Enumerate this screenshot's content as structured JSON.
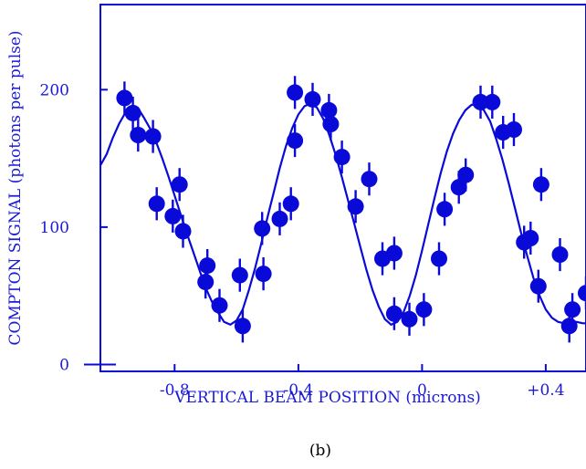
{
  "colors": {
    "series": "#0a0ad8",
    "label": "#1a1ad8",
    "caption": "#000000"
  },
  "caption": "(b)",
  "chart_data": {
    "type": "scatter",
    "title": "",
    "xlabel": "VERTICAL BEAM POSITION (microns)",
    "ylabel": "COMPTON SIGNAL (photons per pulse)",
    "xlim": [
      -1.04,
      0.53
    ],
    "ylim": [
      -5,
      262
    ],
    "xticks": [
      -0.8,
      -0.4,
      0,
      0.4
    ],
    "xtick_labels": [
      "-0.8",
      "-0.4",
      "0",
      "+0.4"
    ],
    "yticks": [
      0,
      100,
      200
    ],
    "ytick_labels": [
      "0",
      "100",
      "200"
    ],
    "grid": false,
    "legend": "none",
    "series": [
      {
        "type": "scatter",
        "error_bars": true,
        "points": [
          {
            "x": -0.962,
            "y": 194,
            "err": 12
          },
          {
            "x": -0.935,
            "y": 183,
            "err": 12
          },
          {
            "x": -0.918,
            "y": 167,
            "err": 12
          },
          {
            "x": -0.87,
            "y": 166,
            "err": 12
          },
          {
            "x": -0.858,
            "y": 117,
            "err": 12
          },
          {
            "x": -0.806,
            "y": 108,
            "err": 12
          },
          {
            "x": -0.784,
            "y": 131,
            "err": 12
          },
          {
            "x": -0.773,
            "y": 97,
            "err": 12
          },
          {
            "x": -0.7,
            "y": 60,
            "err": 12
          },
          {
            "x": -0.694,
            "y": 72,
            "err": 12
          },
          {
            "x": -0.655,
            "y": 43,
            "err": 12
          },
          {
            "x": -0.589,
            "y": 65,
            "err": 12
          },
          {
            "x": -0.58,
            "y": 28,
            "err": 12
          },
          {
            "x": -0.517,
            "y": 99,
            "err": 12
          },
          {
            "x": -0.513,
            "y": 66,
            "err": 12
          },
          {
            "x": -0.46,
            "y": 106,
            "err": 12
          },
          {
            "x": -0.424,
            "y": 117,
            "err": 12
          },
          {
            "x": -0.411,
            "y": 198,
            "err": 12
          },
          {
            "x": -0.411,
            "y": 163,
            "err": 12
          },
          {
            "x": -0.354,
            "y": 193,
            "err": 12
          },
          {
            "x": -0.301,
            "y": 185,
            "err": 12
          },
          {
            "x": -0.295,
            "y": 175,
            "err": 12
          },
          {
            "x": -0.259,
            "y": 151,
            "err": 12
          },
          {
            "x": -0.215,
            "y": 115,
            "err": 12
          },
          {
            "x": -0.171,
            "y": 135,
            "err": 12
          },
          {
            "x": -0.128,
            "y": 77,
            "err": 12
          },
          {
            "x": -0.09,
            "y": 81,
            "err": 12
          },
          {
            "x": -0.09,
            "y": 37,
            "err": 12
          },
          {
            "x": -0.041,
            "y": 33,
            "err": 12
          },
          {
            "x": 0.006,
            "y": 40,
            "err": 12
          },
          {
            "x": 0.055,
            "y": 77,
            "err": 12
          },
          {
            "x": 0.073,
            "y": 113,
            "err": 12
          },
          {
            "x": 0.119,
            "y": 129,
            "err": 12
          },
          {
            "x": 0.141,
            "y": 138,
            "err": 12
          },
          {
            "x": 0.189,
            "y": 191,
            "err": 12
          },
          {
            "x": 0.227,
            "y": 191,
            "err": 12
          },
          {
            "x": 0.262,
            "y": 169,
            "err": 12
          },
          {
            "x": 0.297,
            "y": 171,
            "err": 12
          },
          {
            "x": 0.33,
            "y": 89,
            "err": 12
          },
          {
            "x": 0.351,
            "y": 92,
            "err": 12
          },
          {
            "x": 0.376,
            "y": 57,
            "err": 12
          },
          {
            "x": 0.385,
            "y": 131,
            "err": 12
          },
          {
            "x": 0.446,
            "y": 80,
            "err": 12
          },
          {
            "x": 0.476,
            "y": 28,
            "err": 12
          },
          {
            "x": 0.486,
            "y": 40,
            "err": 12
          },
          {
            "x": 0.53,
            "y": 52,
            "err": 12
          }
        ]
      },
      {
        "type": "line",
        "x": [
          -1.04,
          -1.02,
          -1.0,
          -0.98,
          -0.96,
          -0.94,
          -0.92,
          -0.9,
          -0.88,
          -0.86,
          -0.84,
          -0.82,
          -0.8,
          -0.78,
          -0.76,
          -0.74,
          -0.72,
          -0.7,
          -0.68,
          -0.66,
          -0.64,
          -0.62,
          -0.6,
          -0.58,
          -0.56,
          -0.54,
          -0.52,
          -0.5,
          -0.48,
          -0.46,
          -0.44,
          -0.42,
          -0.4,
          -0.38,
          -0.36,
          -0.34,
          -0.32,
          -0.3,
          -0.28,
          -0.26,
          -0.24,
          -0.22,
          -0.2,
          -0.18,
          -0.16,
          -0.14,
          -0.12,
          -0.1,
          -0.08,
          -0.06,
          -0.04,
          -0.02,
          0.0,
          0.02,
          0.04,
          0.06,
          0.08,
          0.1,
          0.12,
          0.14,
          0.16,
          0.18,
          0.2,
          0.22,
          0.24,
          0.26,
          0.28,
          0.3,
          0.32,
          0.34,
          0.36,
          0.38,
          0.4,
          0.42,
          0.44,
          0.46,
          0.48,
          0.5,
          0.52,
          0.53
        ],
        "y": [
          145,
          153,
          165,
          175,
          183,
          188,
          187,
          180,
          172,
          162,
          150,
          137,
          123,
          109,
          95,
          82,
          69,
          56,
          46,
          38,
          31,
          29,
          32,
          40,
          54,
          70,
          88,
          107,
          125,
          143,
          159,
          172,
          182,
          188,
          190,
          187,
          179,
          167,
          153,
          137,
          120,
          103,
          86,
          69,
          54,
          42,
          33,
          29,
          31,
          38,
          50,
          65,
          83,
          102,
          121,
          139,
          155,
          168,
          178,
          185,
          189,
          189,
          185,
          177,
          164,
          149,
          132,
          114,
          96,
          79,
          63,
          50,
          40,
          34,
          31,
          30,
          31,
          31,
          30,
          30
        ]
      }
    ]
  }
}
